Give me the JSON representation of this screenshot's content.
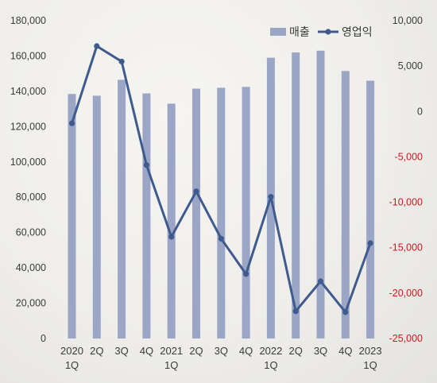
{
  "chart_data": {
    "type": "bar+line",
    "categories": [
      [
        "2020",
        "1Q"
      ],
      [
        "2Q"
      ],
      [
        "3Q"
      ],
      [
        "4Q"
      ],
      [
        "2021",
        "1Q"
      ],
      [
        "2Q"
      ],
      [
        "3Q"
      ],
      [
        "4Q"
      ],
      [
        "2022",
        "1Q"
      ],
      [
        "2Q"
      ],
      [
        "3Q"
      ],
      [
        "4Q"
      ],
      [
        "2023",
        "1Q"
      ]
    ],
    "series": [
      {
        "name": "매출",
        "type": "bar",
        "axis": "left",
        "color": "#9ba5c5",
        "values": [
          138500,
          137500,
          146500,
          138800,
          133000,
          141500,
          142000,
          142500,
          159000,
          162000,
          163000,
          151500,
          146000
        ]
      },
      {
        "name": "영업익",
        "type": "line",
        "axis": "right",
        "color": "#3f5a8f",
        "values": [
          -1300,
          7200,
          5500,
          -5900,
          -13800,
          -8800,
          -14000,
          -17900,
          -9400,
          -22000,
          -18700,
          -22100,
          -14500
        ]
      }
    ],
    "left_axis": {
      "ylim": [
        0,
        180000
      ],
      "ticks": [
        "180,000",
        "160,000",
        "140,000",
        "120,000",
        "100,000",
        "80,000",
        "60,000",
        "40,000",
        "20,000",
        "0"
      ]
    },
    "right_axis": {
      "ylim": [
        -25000,
        10000
      ],
      "ticks": [
        "10,000",
        "5,000",
        "0",
        "-5,000",
        "-10,000",
        "-15,000",
        "-20,000",
        "-25,000"
      ],
      "positive_color": "#3a3a3a",
      "negative_color": "#c8191e"
    },
    "legend": {
      "position": "top-right"
    },
    "grid": false
  }
}
